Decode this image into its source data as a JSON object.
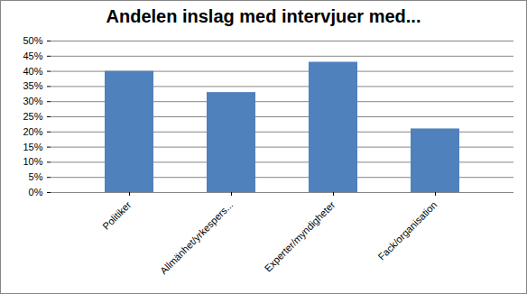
{
  "chart_data": {
    "type": "bar",
    "title": "Andelen inslag med intervjuer med...",
    "categories": [
      "Politiker",
      "Allmänhet/yrkespers...",
      "Experter/myndigheter",
      "Fack/organisation"
    ],
    "values": [
      40,
      33,
      43,
      21
    ],
    "color": "#4f81bd",
    "ylim": [
      0,
      50
    ],
    "yticks": [
      {
        "value": 0,
        "label": "0%"
      },
      {
        "value": 5,
        "label": "5%"
      },
      {
        "value": 10,
        "label": "10%"
      },
      {
        "value": 15,
        "label": "15%"
      },
      {
        "value": 20,
        "label": "20%"
      },
      {
        "value": 25,
        "label": "25%"
      },
      {
        "value": 30,
        "label": "30%"
      },
      {
        "value": 35,
        "label": "35%"
      },
      {
        "value": 40,
        "label": "40%"
      },
      {
        "value": 45,
        "label": "45%"
      },
      {
        "value": 50,
        "label": "50%"
      }
    ],
    "grid": true
  }
}
